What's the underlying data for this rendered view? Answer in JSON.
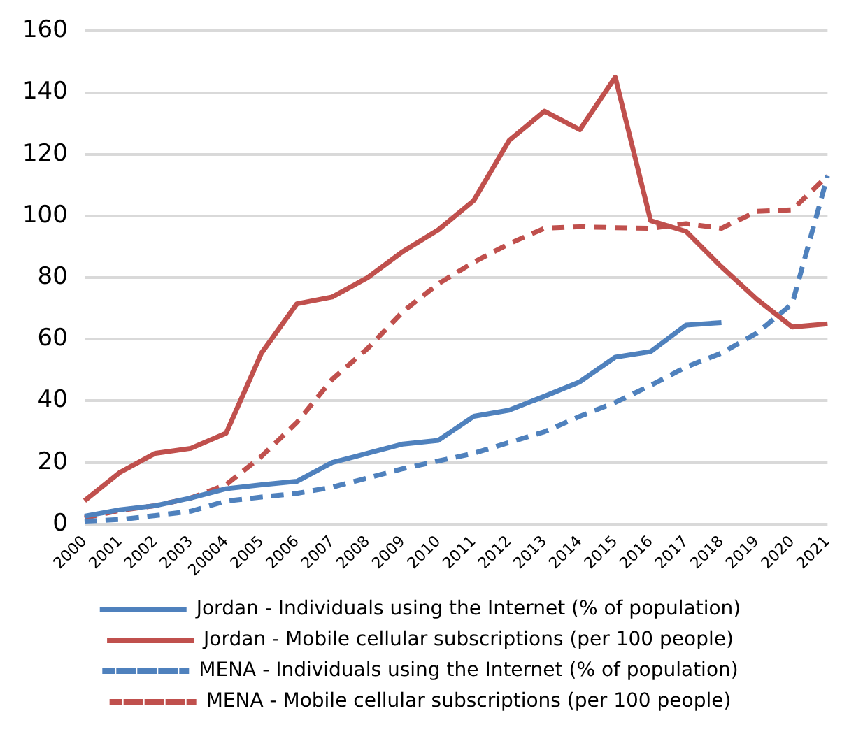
{
  "chart_data": {
    "type": "line",
    "categories": [
      "2000",
      "2001",
      "2002",
      "2003",
      "20004",
      "2005",
      "2006",
      "2007",
      "2008",
      "2009",
      "2010",
      "2011",
      "2012",
      "2013",
      "2014",
      "2015",
      "2016",
      "2017",
      "2018",
      "2019",
      "2020",
      "2021"
    ],
    "series": [
      {
        "name": "Jordan - Individuals using the Internet (% of population)",
        "color": "#4f81bd",
        "line_style": "solid",
        "values": [
          2.6,
          4.7,
          6,
          8.5,
          11.5,
          12.8,
          13.9,
          20,
          23,
          26,
          27.2,
          35,
          37,
          41.5,
          46.2,
          54.2,
          56,
          64.6,
          65.4,
          null,
          null,
          null
        ]
      },
      {
        "name": "Jordan - Mobile cellular subscriptions (per 100 people)",
        "color": "#c0504d",
        "line_style": "solid",
        "values": [
          7.6,
          16.8,
          23,
          24.6,
          29.5,
          55.5,
          71.5,
          73.7,
          80,
          88.5,
          95.5,
          105,
          124.5,
          134,
          128,
          145,
          98.5,
          95,
          83.5,
          73,
          64,
          65
        ]
      },
      {
        "name": "MENA - Individuals using the Internet (% of population)",
        "color": "#4f81bd",
        "line_style": "dashed",
        "values": [
          1,
          1.5,
          2.8,
          4.2,
          7.5,
          8.8,
          10,
          12,
          15,
          18,
          20.5,
          23,
          26.5,
          30,
          35,
          39.5,
          45,
          51,
          55.5,
          62,
          71.5,
          113
        ]
      },
      {
        "name": "MENA - Mobile cellular subscriptions (per 100 people)",
        "color": "#c0504d",
        "line_style": "dashed",
        "values": [
          2,
          4.5,
          6,
          8.5,
          12.8,
          22,
          33,
          47,
          57,
          69,
          78,
          85,
          91,
          96,
          96.5,
          96.2,
          96,
          97.5,
          96,
          101.5,
          102,
          113
        ]
      }
    ],
    "ylim": [
      0,
      160
    ],
    "yticks": [
      0,
      20,
      40,
      60,
      80,
      100,
      120,
      140,
      160
    ],
    "grid": "y",
    "legend": "bottom",
    "marker": "none"
  }
}
